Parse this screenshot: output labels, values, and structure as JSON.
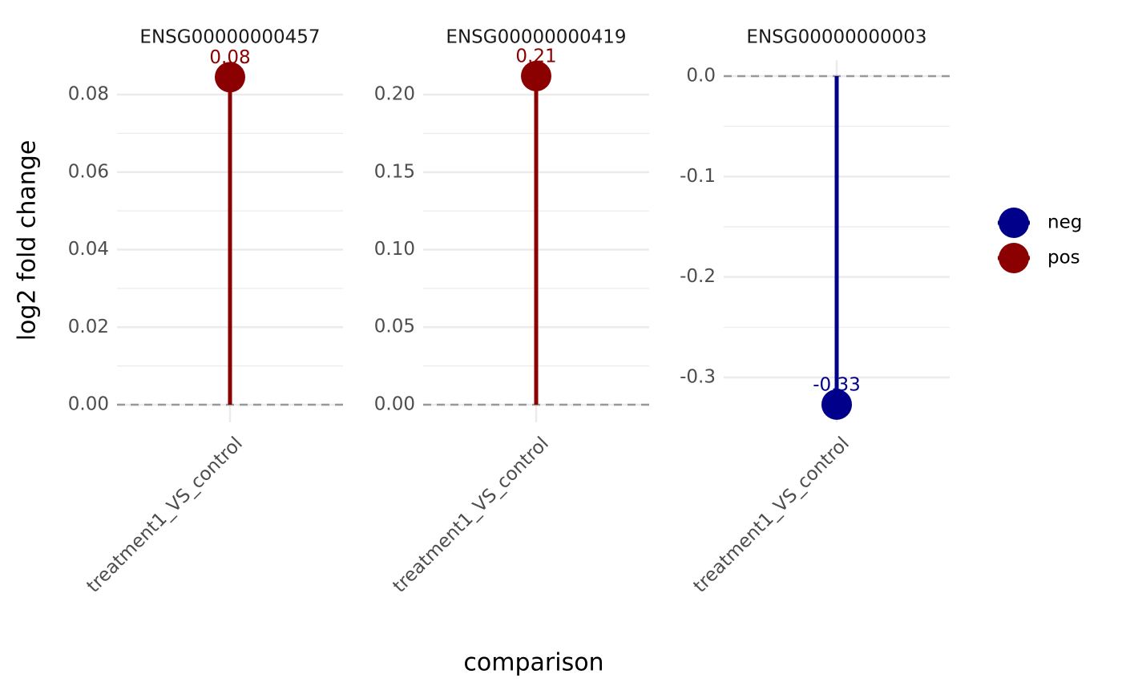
{
  "chart_data": {
    "type": "lollipop",
    "xlabel": "comparison",
    "ylabel": "log2 fold change",
    "hline": 0,
    "grid": true,
    "legend": [
      {
        "name": "neg",
        "color": "#00008b"
      },
      {
        "name": "pos",
        "color": "#8b0000"
      }
    ],
    "panels": [
      {
        "title": "ENSG00000000457",
        "categories": [
          "treatment1_VS_control"
        ],
        "values": [
          0.0845
        ],
        "value_labels": [
          "0.08"
        ],
        "group": "pos",
        "ylim": [
          -0.00455,
          0.0889
        ],
        "yticks": [
          {
            "value": 0,
            "label": "0.00"
          },
          0.02,
          0.04,
          0.06,
          0.08
        ]
      },
      {
        "title": "ENSG00000000419",
        "categories": [
          "treatment1_VS_control"
        ],
        "values": [
          0.212
        ],
        "value_labels": [
          "0.21"
        ],
        "group": "pos",
        "ylim": [
          -0.0114,
          0.2223
        ],
        "yticks": [
          {
            "value": 0,
            "label": "0.00"
          },
          0.05,
          {
            "value": 0.1,
            "label": "0.10"
          },
          0.15,
          {
            "value": 0.2,
            "label": "0.20"
          }
        ]
      },
      {
        "title": "ENSG00000000003",
        "categories": [
          "treatment1_VS_control"
        ],
        "values": [
          -0.327
        ],
        "value_labels": [
          "-0.33"
        ],
        "group": "neg",
        "ylim": [
          -0.3447,
          0.016
        ],
        "yticks": [
          {
            "value": 0,
            "label": "0.0"
          },
          -0.1,
          -0.2,
          -0.3
        ]
      }
    ]
  }
}
